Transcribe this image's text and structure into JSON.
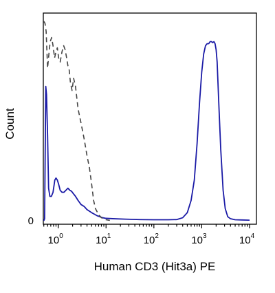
{
  "chart_data": {
    "type": "line",
    "title": "",
    "xlabel": "Human CD3 (Hit3a) PE",
    "ylabel": "Count",
    "x_scale": "log",
    "xlim": [
      0.5,
      10000
    ],
    "ylim": [
      0,
      100
    ],
    "x_ticks": [
      {
        "value": 1,
        "base": "10",
        "exp": "0"
      },
      {
        "value": 10,
        "base": "10",
        "exp": "1"
      },
      {
        "value": 100,
        "base": "10",
        "exp": "2"
      },
      {
        "value": 1000,
        "base": "10",
        "exp": "3"
      },
      {
        "value": 10000,
        "base": "10",
        "exp": "4"
      }
    ],
    "y_ticks": [
      {
        "value": 0,
        "label": "0"
      }
    ],
    "grid": false,
    "legend": "none",
    "series": [
      {
        "style": "solid",
        "color": "#1a1aa6",
        "x": [
          0.5,
          0.52,
          0.55,
          0.57,
          0.6,
          0.63,
          0.67,
          0.72,
          0.78,
          0.85,
          0.9,
          0.96,
          1.02,
          1.1,
          1.2,
          1.32,
          1.45,
          1.6,
          1.75,
          1.9,
          2.05,
          2.3,
          2.6,
          3.0,
          3.5,
          4.0,
          5.0,
          6.5,
          8.5,
          10,
          15,
          25,
          50,
          100,
          200,
          300,
          400,
          500,
          600,
          700,
          800,
          900,
          1000,
          1100,
          1200,
          1300,
          1400,
          1500,
          1600,
          1700,
          1800,
          1900,
          2000,
          2100,
          2300,
          2500,
          2800,
          3100,
          3500,
          4000,
          5000,
          7000,
          10000
        ],
        "y": [
          0,
          1,
          66,
          62,
          42,
          16,
          12,
          12,
          14,
          20,
          21,
          20,
          18,
          15,
          14,
          14,
          15,
          16,
          15,
          14.5,
          13.5,
          12,
          10,
          8,
          7,
          5.5,
          4,
          2.5,
          1.5,
          1.2,
          1,
          0.8,
          0.6,
          0.5,
          0.5,
          0.6,
          1.5,
          4,
          10,
          20,
          38,
          58,
          73,
          82,
          86,
          87,
          87,
          88,
          88,
          87.5,
          88,
          87,
          84,
          78,
          55,
          35,
          15,
          6,
          2,
          1,
          0.5,
          0.4,
          0.3
        ]
      },
      {
        "style": "dashed",
        "color": "#444444",
        "x": [
          0.5,
          0.53,
          0.56,
          0.6,
          0.64,
          0.68,
          0.73,
          0.78,
          0.84,
          0.9,
          0.96,
          1.02,
          1.1,
          1.2,
          1.3,
          1.4,
          1.5,
          1.6,
          1.7,
          1.8,
          1.95,
          2.1,
          2.3,
          2.6,
          3.0,
          3.5,
          4.0,
          4.5,
          5.0,
          5.5,
          6.0,
          7.0,
          8.0,
          9.0,
          10,
          12
        ],
        "y": [
          98,
          97,
          93,
          75,
          82,
          88,
          90,
          86,
          80,
          83,
          85,
          80,
          78,
          83,
          86,
          84,
          80,
          76,
          74,
          68,
          64,
          70,
          66,
          55,
          48,
          40,
          32,
          26,
          18,
          10,
          6,
          3,
          1.5,
          1,
          0.5,
          0.2
        ]
      }
    ]
  }
}
